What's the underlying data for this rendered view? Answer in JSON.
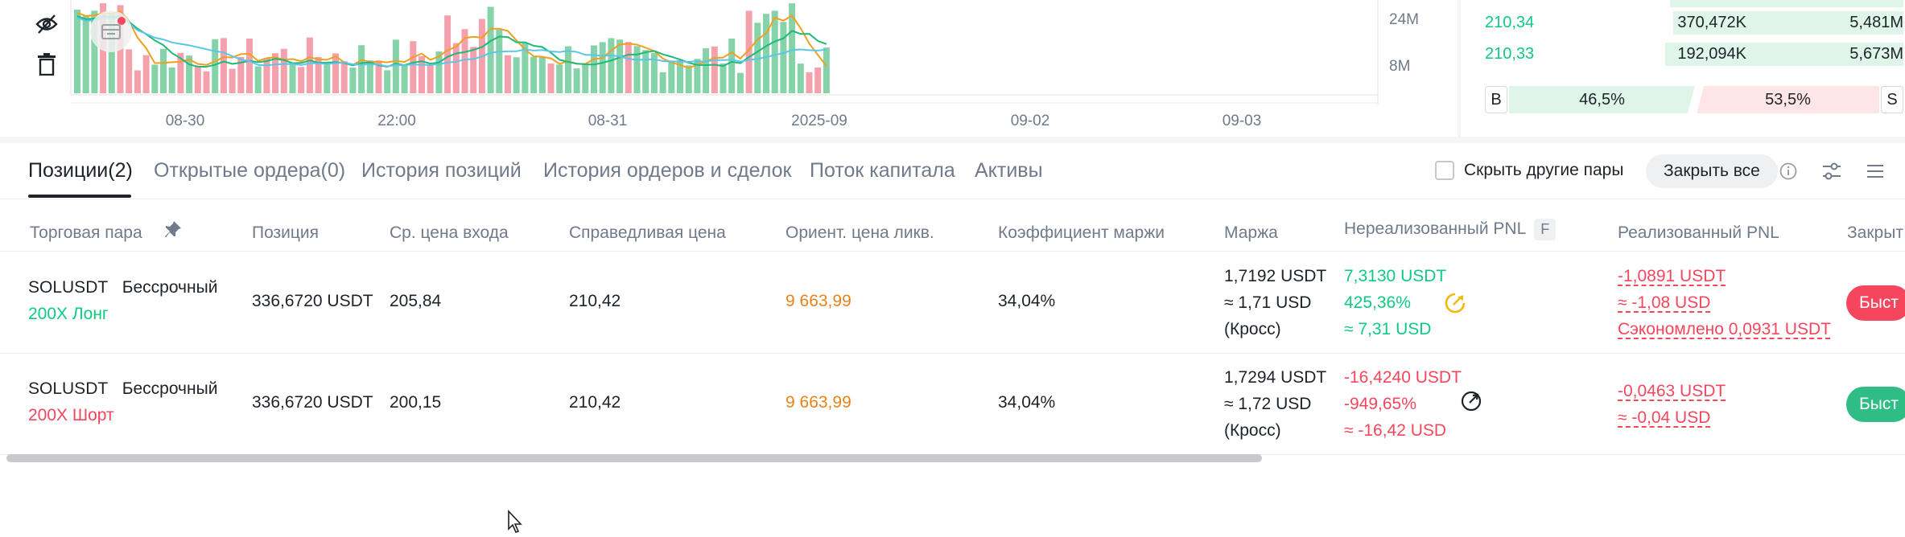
{
  "chart": {
    "volume_labels": [
      "24M",
      "8M"
    ],
    "x_labels": [
      "08-30",
      "22:00",
      "08-31",
      "2025-09",
      "09-02",
      "09-03"
    ],
    "colors": {
      "up": "#86d3a9",
      "down": "#f4a0ad",
      "ma_orange": "#f0a020",
      "ma_green": "#1fb978",
      "ma_blue": "#5bc6e8"
    }
  },
  "orderbook": {
    "rows": [
      {
        "price": "210,34",
        "size": "370,472K",
        "total": "5,481M",
        "depth": 0.55
      },
      {
        "price": "210,33",
        "size": "192,094K",
        "total": "5,673M",
        "depth": 0.57
      }
    ],
    "buy_tag": "B",
    "sell_tag": "S",
    "buy_pct": "46,5%",
    "sell_pct": "53,5%"
  },
  "tabs": [
    {
      "label": "Позиции(2)",
      "active": true
    },
    {
      "label": "Открытые ордера(0)"
    },
    {
      "label": "История позиций"
    },
    {
      "label": "История ордеров и сделок"
    },
    {
      "label": "Поток капитала"
    },
    {
      "label": "Активы"
    }
  ],
  "toolbar": {
    "hide_pairs_label": "Скрыть другие пары",
    "close_all_label": "Закрыть все"
  },
  "table": {
    "headers": {
      "pair": "Торговая пара",
      "position": "Позиция",
      "entry": "Ср. цена входа",
      "fair": "Справедливая цена",
      "liq": "Ориент. цена ликв.",
      "margin_ratio": "Коэффициент маржи",
      "margin": "Маржа",
      "upnl": "Нереализованный PNL",
      "upnl_badge": "F",
      "rpnl": "Реализованный PNL",
      "close": "Закрыт"
    },
    "rows": [
      {
        "symbol": "SOLUSDT",
        "contract": "Бессрочный",
        "leverage_side": "200X Лонг",
        "position": "336,6720 USDT",
        "entry": "205,84",
        "fair": "210,42",
        "liq": "9 663,99",
        "margin_ratio": "34,04%",
        "margin": [
          "1,7192 USDT",
          "≈ 1,71 USD",
          "(Кросс)"
        ],
        "upnl": [
          "7,3130 USDT",
          "425,36%",
          "≈ 7,31 USD"
        ],
        "rpnl": [
          "-1,0891 USDT",
          "≈ -1,08 USD",
          "Сэкономлено 0,0931 USDT"
        ],
        "close_label": "Быст"
      },
      {
        "symbol": "SOLUSDT",
        "contract": "Бессрочный",
        "leverage_side": "200X Шорт",
        "position": "336,6720 USDT",
        "entry": "200,15",
        "fair": "210,42",
        "liq": "9 663,99",
        "margin_ratio": "34,04%",
        "margin": [
          "1,7294 USDT",
          "≈ 1,72 USD",
          "(Кросс)"
        ],
        "upnl": [
          "-16,4240 USDT",
          "-949,65%",
          "≈ -16,42 USD"
        ],
        "rpnl": [
          "-0,0463 USDT",
          "≈ -0,04 USD"
        ],
        "close_label": "Быст"
      }
    ]
  }
}
